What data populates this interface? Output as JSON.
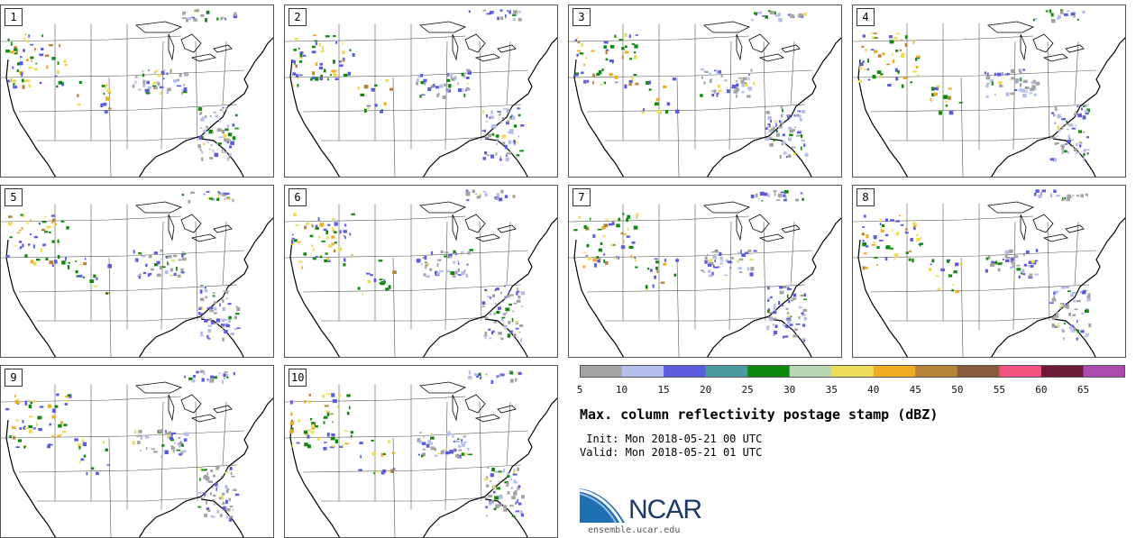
{
  "panels": [
    "1",
    "2",
    "3",
    "4",
    "5",
    "6",
    "7",
    "8",
    "9",
    "10"
  ],
  "colorbar": {
    "ticks": [
      "5",
      "10",
      "15",
      "20",
      "25",
      "30",
      "35",
      "40",
      "45",
      "50",
      "55",
      "60",
      "65"
    ],
    "colors": [
      "#a3a3a3",
      "#b5bdea",
      "#5b5ce0",
      "#4a9a9e",
      "#0d8a0d",
      "#b8d8b5",
      "#eedc5b",
      "#eeac22",
      "#b6853a",
      "#8a5a3c",
      "#f25380",
      "#6b1a38",
      "#ad4aae"
    ]
  },
  "title": "Max. column reflectivity postage stamp (dBZ)",
  "init": " Init: Mon 2018-05-21 00 UTC",
  "valid": "Valid: Mon 2018-05-21 01 UTC",
  "logo": {
    "text": "NCAR",
    "url": "ensemble.ucar.edu"
  },
  "colors": {
    "coast": "#000000",
    "borders": "#555555",
    "logo_blue": "#1b3a6b",
    "logo_swoosh": "#1f6fb5"
  }
}
